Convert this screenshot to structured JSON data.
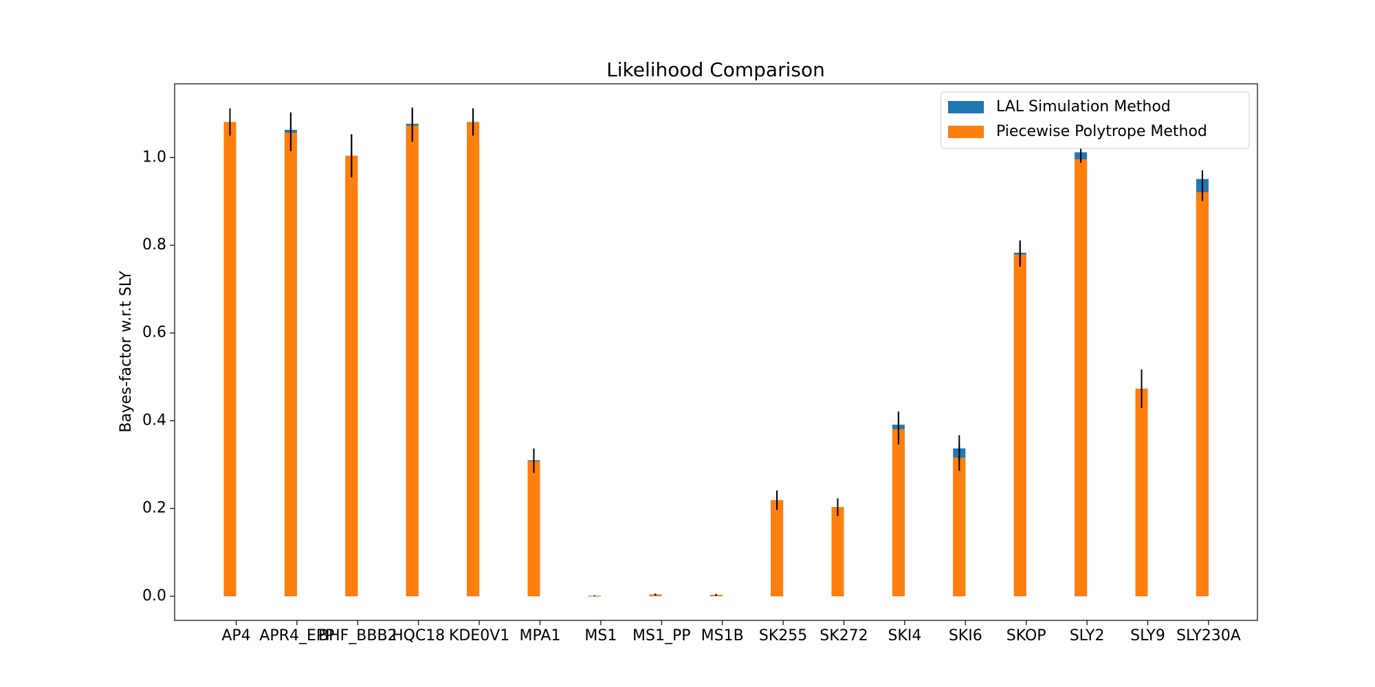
{
  "chart_data": {
    "type": "bar",
    "title": "Likelihood Comparison",
    "y_label": "Bayes-factor w.r.t SLY",
    "categories": [
      "AP4",
      "APR4_EPP",
      "BHF_BBB2",
      "HQC18",
      "KDE0V1",
      "MPA1",
      "MS1",
      "MS1_PP",
      "MS1B",
      "SK255",
      "SK272",
      "SKI4",
      "SKI6",
      "SKOP",
      "SLY2",
      "SLY9",
      "SLY230A"
    ],
    "series": [
      {
        "name": "LAL Simulation Method",
        "color": "#1f77b4",
        "values": [
          1.081,
          1.063,
          1.004,
          1.077,
          1.081,
          0.31,
          0.001,
          0.004,
          0.003,
          0.219,
          0.203,
          0.391,
          0.337,
          0.783,
          1.012,
          0.473,
          0.951
        ],
        "errors": [
          0.031,
          0.04,
          0.049,
          0.037,
          0.031,
          0.027,
          0.001,
          0.002,
          0.002,
          0.022,
          0.02,
          0.03,
          0.03,
          0.028,
          0.008,
          0.044,
          0.02
        ]
      },
      {
        "name": "Piecewise Polytrope Method",
        "color": "#ff7f0e",
        "values": [
          1.081,
          1.057,
          1.004,
          1.073,
          1.081,
          0.308,
          0.001,
          0.004,
          0.003,
          0.219,
          0.203,
          0.381,
          0.316,
          0.779,
          0.996,
          0.473,
          0.921
        ],
        "errors": [
          0.031,
          0.042,
          0.049,
          0.037,
          0.031,
          0.027,
          0.001,
          0.002,
          0.002,
          0.022,
          0.02,
          0.035,
          0.03,
          0.028,
          0.008,
          0.044,
          0.02
        ]
      }
    ],
    "ylim": [
      -0.055,
      1.168
    ],
    "yticks": [
      {
        "value": 0,
        "label": "0.0"
      },
      0.2,
      0.4,
      0.6,
      0.8,
      {
        "value": 1,
        "label": "1.0"
      }
    ],
    "legend": "upper right"
  }
}
